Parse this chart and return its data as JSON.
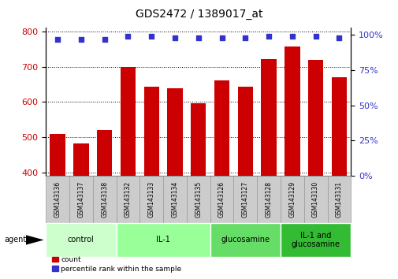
{
  "title": "GDS2472 / 1389017_at",
  "samples": [
    "GSM143136",
    "GSM143137",
    "GSM143138",
    "GSM143132",
    "GSM143133",
    "GSM143134",
    "GSM143135",
    "GSM143126",
    "GSM143127",
    "GSM143128",
    "GSM143129",
    "GSM143130",
    "GSM143131"
  ],
  "counts": [
    508,
    482,
    520,
    700,
    642,
    638,
    595,
    660,
    642,
    722,
    758,
    720,
    670
  ],
  "percentiles": [
    97,
    97,
    97,
    99,
    99,
    98,
    98,
    98,
    98,
    99,
    99,
    99,
    98
  ],
  "bar_color": "#cc0000",
  "dot_color": "#3333cc",
  "ylim_left": [
    390,
    810
  ],
  "ylim_right": [
    0,
    105
  ],
  "yticks_left": [
    400,
    500,
    600,
    700,
    800
  ],
  "yticks_right": [
    0,
    25,
    50,
    75,
    100
  ],
  "groups": [
    {
      "label": "control",
      "start": 0,
      "end": 3,
      "color": "#ccffcc"
    },
    {
      "label": "IL-1",
      "start": 3,
      "end": 7,
      "color": "#99ff99"
    },
    {
      "label": "glucosamine",
      "start": 7,
      "end": 10,
      "color": "#66dd66"
    },
    {
      "label": "IL-1 and\nglucosamine",
      "start": 10,
      "end": 13,
      "color": "#33bb33"
    }
  ],
  "agent_label": "agent",
  "legend_count_label": "count",
  "legend_percentile_label": "percentile rank within the sample",
  "tick_label_color_left": "#cc0000",
  "tick_label_color_right": "#3333cc",
  "grid_color": "#000000",
  "sample_bg_color": "#cccccc",
  "sample_border_color": "#999999"
}
